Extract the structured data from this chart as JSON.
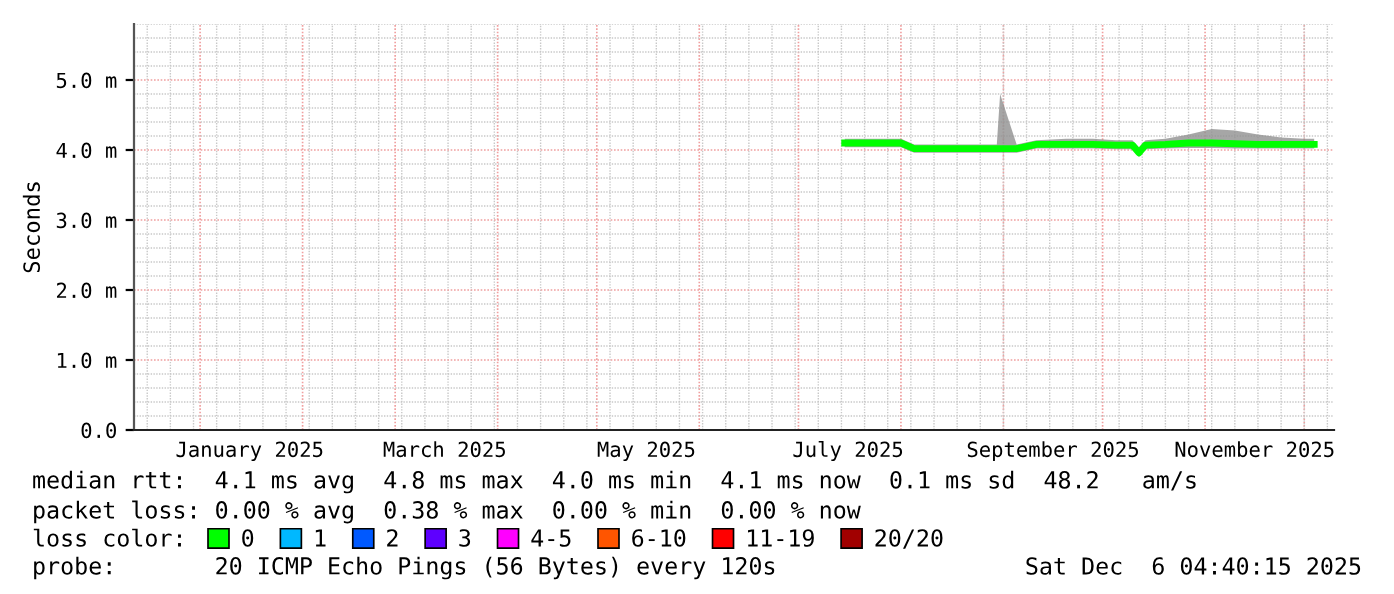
{
  "chart_data": {
    "type": "line",
    "ylabel": "Seconds",
    "x": [
      "2025-07-15",
      "2025-07-22",
      "2025-08-01",
      "2025-08-05",
      "2025-08-12",
      "2025-08-20",
      "2025-08-30",
      "2025-08-31",
      "2025-09-05",
      "2025-09-11",
      "2025-09-20",
      "2025-09-28",
      "2025-10-05",
      "2025-10-10",
      "2025-10-12",
      "2025-10-14",
      "2025-10-20",
      "2025-10-27",
      "2025-11-03",
      "2025-11-10",
      "2025-11-17",
      "2025-11-24",
      "2025-12-01",
      "2025-12-04"
    ],
    "series": [
      {
        "name": "0",
        "color": "#00ff00",
        "values": [
          4.1,
          4.1,
          4.1,
          4.02,
          4.02,
          4.02,
          4.02,
          4.02,
          4.02,
          4.08,
          4.08,
          4.08,
          4.07,
          4.07,
          3.96,
          4.07,
          4.08,
          4.1,
          4.1,
          4.09,
          4.08,
          4.08,
          4.08,
          4.08
        ],
        "lower": [
          4.04,
          4.04,
          4.04,
          3.96,
          3.96,
          3.96,
          3.96,
          3.96,
          3.96,
          4.02,
          4.02,
          4.02,
          4.01,
          4.01,
          3.9,
          4.01,
          4.02,
          4.03,
          4.03,
          4.02,
          4.02,
          4.02,
          4.02,
          4.02
        ],
        "upper": [
          4.16,
          4.16,
          4.16,
          4.08,
          4.08,
          4.08,
          4.08,
          4.8,
          4.08,
          4.14,
          4.16,
          4.16,
          4.14,
          4.14,
          4.04,
          4.14,
          4.16,
          4.22,
          4.3,
          4.28,
          4.22,
          4.18,
          4.16,
          4.16
        ]
      },
      {
        "name": "1",
        "color": "#00b8ff",
        "values": [
          null,
          null,
          null,
          null,
          null,
          null,
          null,
          null,
          null,
          null,
          null,
          null,
          null,
          null,
          null,
          null,
          null,
          null,
          null,
          null,
          null,
          null,
          null,
          null
        ]
      },
      {
        "name": "2",
        "color": "#0059ff",
        "values": [
          null,
          null,
          null,
          null,
          null,
          null,
          null,
          null,
          null,
          null,
          null,
          null,
          null,
          null,
          null,
          null,
          null,
          null,
          null,
          null,
          null,
          null,
          null,
          null
        ]
      },
      {
        "name": "3",
        "color": "#5e00ff",
        "values": [
          null,
          null,
          null,
          null,
          null,
          null,
          null,
          null,
          null,
          null,
          null,
          null,
          null,
          null,
          null,
          null,
          null,
          null,
          null,
          null,
          null,
          null,
          null,
          null
        ]
      },
      {
        "name": "4-5",
        "color": "#ff00ff",
        "values": [
          null,
          null,
          null,
          null,
          null,
          null,
          null,
          null,
          null,
          null,
          null,
          null,
          null,
          null,
          null,
          null,
          null,
          null,
          null,
          null,
          null,
          null,
          null,
          null
        ]
      },
      {
        "name": "6-10",
        "color": "#ff5500",
        "values": [
          null,
          null,
          null,
          null,
          null,
          null,
          null,
          null,
          null,
          null,
          null,
          null,
          null,
          null,
          null,
          null,
          null,
          null,
          null,
          null,
          null,
          null,
          null,
          null
        ]
      },
      {
        "name": "11-19",
        "color": "#ff0000",
        "values": [
          null,
          null,
          null,
          null,
          null,
          null,
          null,
          null,
          null,
          null,
          null,
          null,
          null,
          null,
          null,
          null,
          null,
          null,
          null,
          null,
          null,
          null,
          null,
          null
        ]
      },
      {
        "name": "20/20",
        "color": "#a10000",
        "values": [
          null,
          null,
          null,
          null,
          null,
          null,
          null,
          null,
          null,
          null,
          null,
          null,
          null,
          null,
          null,
          null,
          null,
          null,
          null,
          null,
          null,
          null,
          null,
          null
        ]
      }
    ],
    "legend_title": "loss color:",
    "legend": "bottom",
    "xlim": [
      "2024-12-12",
      "2025-12-10"
    ],
    "xticks": [
      {
        "value": "2025-01-16",
        "label": "January 2025"
      },
      {
        "value": "2025-03-16",
        "label": "March 2025"
      },
      {
        "value": "2025-05-16",
        "label": "May 2025"
      },
      {
        "value": "2025-07-16",
        "label": "July 2025"
      },
      {
        "value": "2025-09-16",
        "label": "September 2025"
      },
      {
        "value": "2025-11-16",
        "label": "November 2025"
      }
    ],
    "ylim": [
      0,
      5.8
    ],
    "yticks": [
      {
        "value": 0,
        "label": "0.0"
      },
      {
        "value": 1,
        "label": "1.0 m"
      },
      {
        "value": 2,
        "label": "2.0 m"
      },
      {
        "value": 3,
        "label": "3.0 m"
      },
      {
        "value": 4,
        "label": "4.0 m"
      },
      {
        "value": 5,
        "label": "5.0 m"
      }
    ],
    "grid": true,
    "annotations": [
      "median rtt:  4.1 ms avg  4.8 ms max  4.0 ms min  4.1 ms now  0.1 ms sd  48.2   am/s",
      "packet loss: 0.00 % avg  0.38 % max  0.00 % min  0.00 % now",
      "probe:       20 ICMP Echo Pings (56 Bytes) every 120s",
      "Sat Dec  6 04:40:15 2025"
    ]
  }
}
